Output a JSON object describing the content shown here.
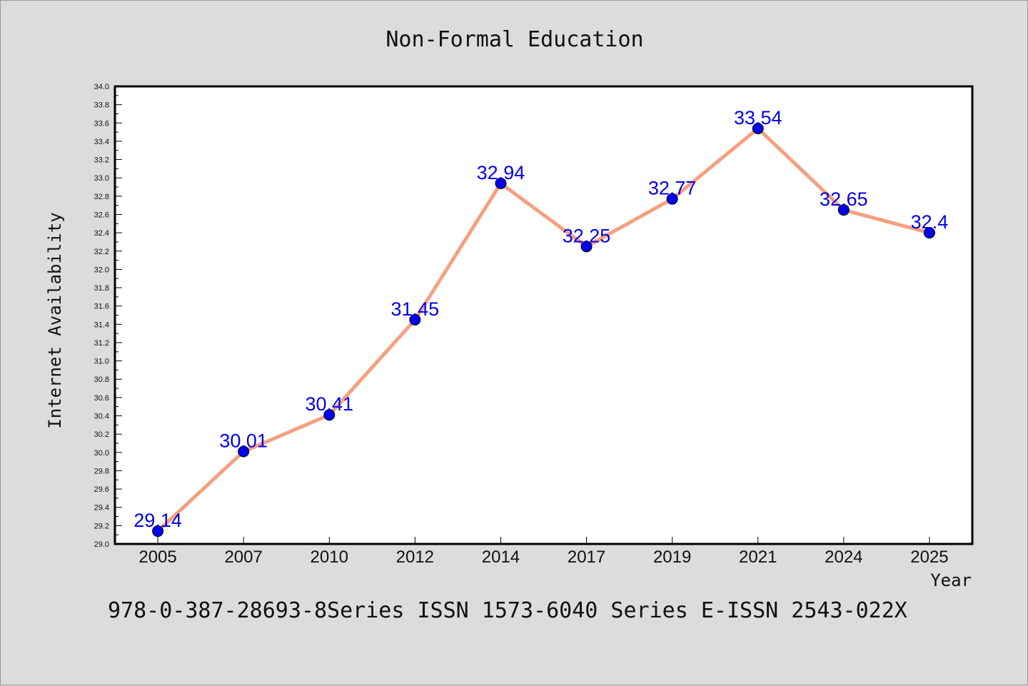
{
  "chart_data": {
    "type": "line",
    "title": "Non-Formal Education",
    "xlabel": "Year",
    "ylabel": "Internet Availability",
    "categories": [
      "2005",
      "2007",
      "2010",
      "2012",
      "2014",
      "2017",
      "2019",
      "2021",
      "2024",
      "2025"
    ],
    "series": [
      {
        "values": [
          29.14,
          30.01,
          30.41,
          31.45,
          32.94,
          32.25,
          32.77,
          33.54,
          32.65,
          32.4
        ],
        "labels": [
          "29.14",
          "30.01",
          "30.41",
          "31.45",
          "32.94",
          "32.25",
          "32.77",
          "33.54",
          "32.65",
          "32.4"
        ]
      }
    ],
    "ylim": [
      29.0,
      34.0
    ],
    "yticks": [
      "29.0",
      "29.2",
      "29.4",
      "29.6",
      "29.8",
      "30.0",
      "30.2",
      "30.4",
      "30.6",
      "30.8",
      "31.0",
      "31.2",
      "31.4",
      "31.6",
      "31.8",
      "32.0",
      "32.2",
      "32.4",
      "32.6",
      "32.8",
      "33.0",
      "33.2",
      "33.4",
      "33.6",
      "33.8",
      "34.0"
    ],
    "grid": false,
    "legend": "none",
    "line_color": "#f4a07f",
    "marker_color": "#0000ee",
    "label_color": "#0000ee"
  },
  "footer": {
    "text": "978-0-387-28693-8Series ISSN 1573-6040 Series E-ISSN 2543-022X"
  }
}
